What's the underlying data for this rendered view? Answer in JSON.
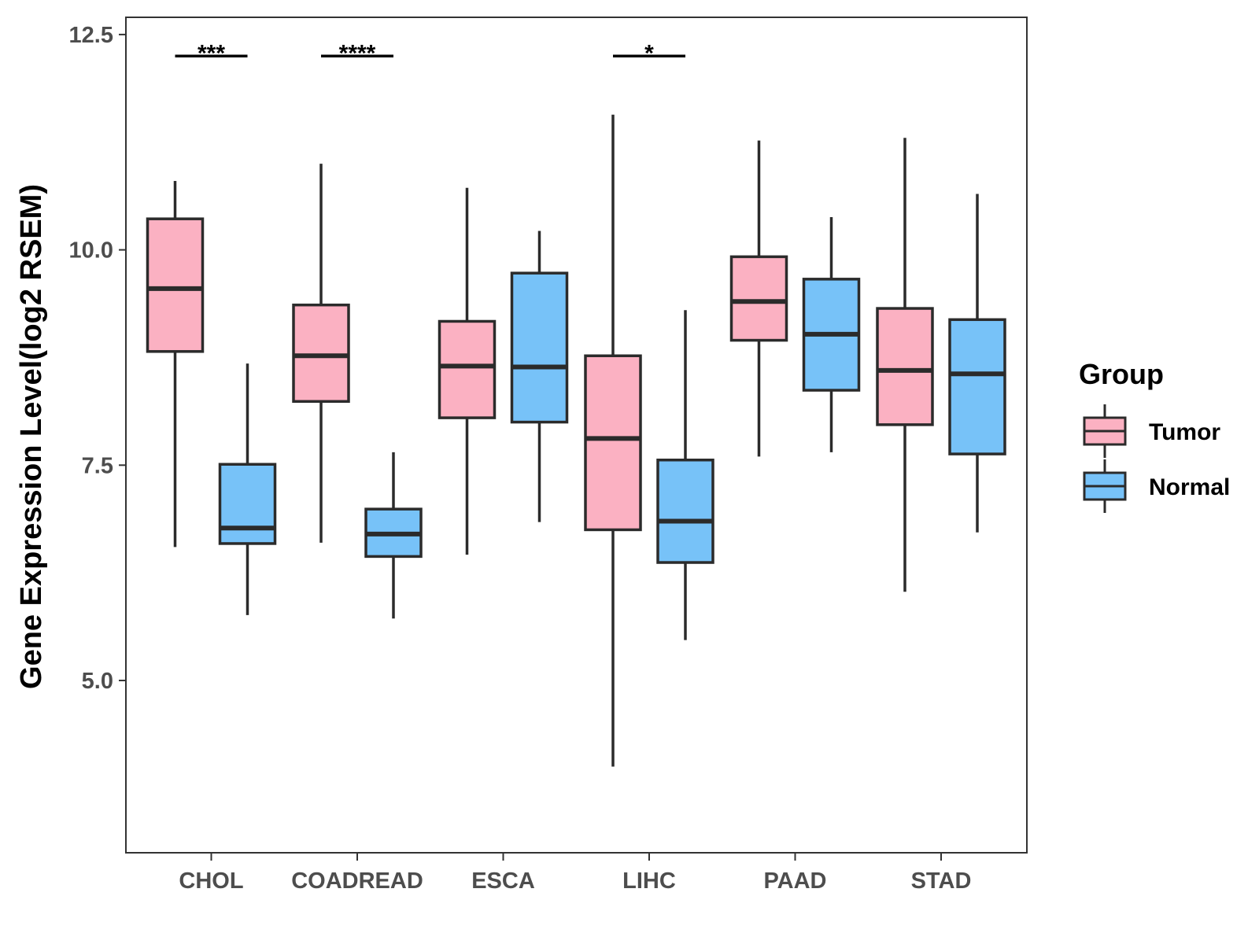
{
  "chart_data": {
    "type": "boxplot",
    "title": "",
    "xlabel": "",
    "ylabel": "Gene Expression Level(log2 RSEM)",
    "ylim": [
      3.0,
      12.7
    ],
    "yticks": [
      5.0,
      7.5,
      10.0,
      12.5
    ],
    "ytick_labels": [
      "5.0",
      "7.5",
      "10.0",
      "12.5"
    ],
    "grid": false,
    "categories": [
      "CHOL",
      "COADREAD",
      "ESCA",
      "LIHC",
      "PAAD",
      "STAD"
    ],
    "legend": {
      "title": "Group",
      "position": "right",
      "entries": [
        {
          "name": "Tumor",
          "color": "#fbb1c2"
        },
        {
          "name": "Normal",
          "color": "#77c2f8"
        }
      ]
    },
    "series": [
      {
        "name": "Tumor",
        "color": "#fbb1c2",
        "boxes": [
          {
            "min": 6.55,
            "q1": 8.82,
            "median": 9.55,
            "q3": 10.36,
            "max": 10.8
          },
          {
            "min": 6.6,
            "q1": 8.24,
            "median": 8.77,
            "q3": 9.36,
            "max": 11.0
          },
          {
            "min": 6.46,
            "q1": 8.05,
            "median": 8.65,
            "q3": 9.17,
            "max": 10.72
          },
          {
            "min": 4.0,
            "q1": 6.75,
            "median": 7.81,
            "q3": 8.77,
            "max": 11.57
          },
          {
            "min": 7.6,
            "q1": 8.95,
            "median": 9.4,
            "q3": 9.92,
            "max": 11.27
          },
          {
            "min": 6.03,
            "q1": 7.97,
            "median": 8.6,
            "q3": 9.32,
            "max": 11.3
          }
        ]
      },
      {
        "name": "Normal",
        "color": "#77c2f8",
        "boxes": [
          {
            "min": 5.76,
            "q1": 6.59,
            "median": 6.77,
            "q3": 7.51,
            "max": 8.68
          },
          {
            "min": 5.72,
            "q1": 6.44,
            "median": 6.7,
            "q3": 6.99,
            "max": 7.65
          },
          {
            "min": 6.84,
            "q1": 8.0,
            "median": 8.64,
            "q3": 9.73,
            "max": 10.22
          },
          {
            "min": 5.47,
            "q1": 6.37,
            "median": 6.85,
            "q3": 7.56,
            "max": 9.3
          },
          {
            "min": 7.65,
            "q1": 8.37,
            "median": 9.02,
            "q3": 9.66,
            "max": 10.38
          },
          {
            "min": 6.72,
            "q1": 7.63,
            "median": 8.56,
            "q3": 9.19,
            "max": 10.65
          }
        ]
      }
    ],
    "significance": [
      {
        "category": "CHOL",
        "label": "***",
        "y": 12.25
      },
      {
        "category": "COADREAD",
        "label": "****",
        "y": 12.25
      },
      {
        "category": "LIHC",
        "label": "*",
        "y": 12.25
      }
    ]
  }
}
